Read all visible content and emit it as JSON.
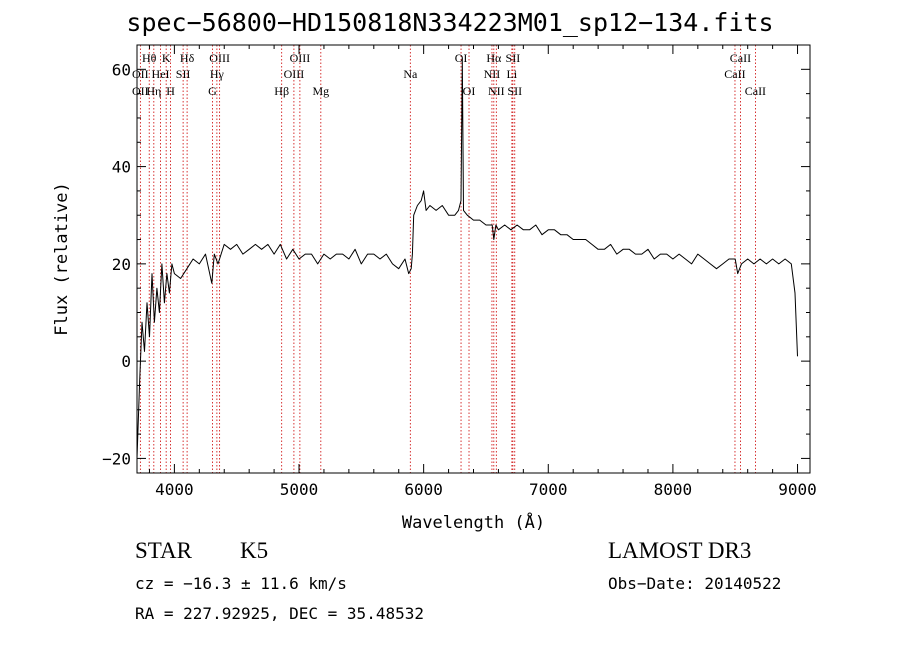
{
  "chart_data": {
    "type": "line",
    "title": "spec−56800−HD150818N334223M01_sp12−134.fits",
    "xlabel": "Wavelength (Å)",
    "ylabel": "Flux (relative)",
    "xlim": [
      3700,
      9100
    ],
    "ylim": [
      -23,
      65
    ],
    "xticks": [
      4000,
      5000,
      6000,
      7000,
      8000,
      9000
    ],
    "yticks": [
      -20,
      0,
      20,
      40,
      60
    ],
    "xtick_labels": [
      "4000",
      "5000",
      "6000",
      "7000",
      "8000",
      "9000"
    ],
    "ytick_labels": [
      "−20",
      "0",
      "20",
      "40",
      "60"
    ],
    "grid": false,
    "legend": "none",
    "series_color": "#000000",
    "line_color": "#cc0000",
    "series": [
      {
        "x": [
          3700,
          3720,
          3740,
          3760,
          3780,
          3800,
          3820,
          3840,
          3860,
          3880,
          3900,
          3920,
          3940,
          3960,
          3980,
          4000,
          4050,
          4100,
          4150,
          4200,
          4250,
          4300,
          4320,
          4350,
          4400,
          4450,
          4500,
          4550,
          4600,
          4650,
          4700,
          4750,
          4800,
          4850,
          4900,
          4950,
          5000,
          5050,
          5100,
          5150,
          5200,
          5250,
          5300,
          5350,
          5400,
          5450,
          5500,
          5550,
          5600,
          5650,
          5700,
          5750,
          5800,
          5850,
          5880,
          5900,
          5910,
          5920,
          5950,
          5980,
          6000,
          6020,
          6050,
          6100,
          6150,
          6200,
          6250,
          6280,
          6300,
          6310,
          6320,
          6350,
          6400,
          6450,
          6500,
          6550,
          6563,
          6580,
          6600,
          6650,
          6700,
          6750,
          6800,
          6850,
          6900,
          6950,
          7000,
          7050,
          7100,
          7150,
          7200,
          7250,
          7300,
          7350,
          7400,
          7450,
          7500,
          7550,
          7600,
          7650,
          7700,
          7750,
          7800,
          7850,
          7900,
          7950,
          8000,
          8050,
          8100,
          8150,
          8200,
          8250,
          8300,
          8350,
          8400,
          8450,
          8500,
          8520,
          8550,
          8600,
          8650,
          8700,
          8750,
          8800,
          8850,
          8900,
          8950,
          8980,
          9000
        ],
        "y": [
          -20,
          -5,
          8,
          2,
          12,
          5,
          18,
          8,
          15,
          10,
          20,
          12,
          18,
          14,
          20,
          18,
          17,
          19,
          21,
          20,
          22,
          16,
          22,
          20,
          24,
          23,
          24,
          22,
          23,
          24,
          23,
          24,
          22,
          24,
          21,
          23,
          21,
          22,
          22,
          20,
          22,
          21,
          22,
          22,
          21,
          23,
          20,
          22,
          22,
          21,
          22,
          20,
          19,
          21,
          18,
          19,
          22,
          30,
          32,
          33,
          35,
          31,
          32,
          31,
          32,
          30,
          30,
          31,
          33,
          62,
          31,
          30,
          29,
          29,
          28,
          28,
          25,
          28,
          27,
          28,
          27,
          28,
          27,
          27,
          28,
          26,
          27,
          27,
          26,
          26,
          25,
          25,
          25,
          24,
          23,
          23,
          24,
          22,
          23,
          23,
          22,
          22,
          23,
          21,
          22,
          22,
          21,
          22,
          21,
          20,
          22,
          21,
          20,
          19,
          20,
          21,
          21,
          18,
          20,
          21,
          20,
          21,
          20,
          21,
          20,
          21,
          20,
          14,
          1
        ]
      }
    ],
    "line_labels": [
      {
        "text": "Hθ",
        "x": 3798,
        "row": 0
      },
      {
        "text": "OII",
        "x": 3727,
        "row": 1
      },
      {
        "text": "OII",
        "x": 3727,
        "row": 2
      },
      {
        "text": "Hη",
        "x": 3835,
        "row": 2
      },
      {
        "text": "K",
        "x": 3934,
        "row": 0
      },
      {
        "text": "HeI",
        "x": 3889,
        "row": 1
      },
      {
        "text": "H",
        "x": 3969,
        "row": 2
      },
      {
        "text": "Hδ",
        "x": 4102,
        "row": 0
      },
      {
        "text": "SII",
        "x": 4070,
        "row": 1
      },
      {
        "text": "OIII",
        "x": 4363,
        "row": 0
      },
      {
        "text": "Hγ",
        "x": 4341,
        "row": 1
      },
      {
        "text": "G",
        "x": 4305,
        "row": 2
      },
      {
        "text": "Hβ",
        "x": 4861,
        "row": 2
      },
      {
        "text": "OIII",
        "x": 5007,
        "row": 0
      },
      {
        "text": "OIII",
        "x": 4959,
        "row": 1
      },
      {
        "text": "Mg",
        "x": 5175,
        "row": 2
      },
      {
        "text": "Na",
        "x": 5893,
        "row": 1
      },
      {
        "text": "OI",
        "x": 6300,
        "row": 0
      },
      {
        "text": "OI",
        "x": 6364,
        "row": 2
      },
      {
        "text": "Hα",
        "x": 6563,
        "row": 0
      },
      {
        "text": "NII",
        "x": 6548,
        "row": 1
      },
      {
        "text": "NII",
        "x": 6583,
        "row": 2
      },
      {
        "text": "SII",
        "x": 6716,
        "row": 0
      },
      {
        "text": "Li",
        "x": 6708,
        "row": 1
      },
      {
        "text": "SII",
        "x": 6731,
        "row": 2
      },
      {
        "text": "CaII",
        "x": 8542,
        "row": 0
      },
      {
        "text": "CaII",
        "x": 8498,
        "row": 1
      },
      {
        "text": "CaII",
        "x": 8662,
        "row": 2
      }
    ]
  },
  "info": {
    "object_type": "STAR",
    "subclass": "K5",
    "survey": "LAMOST DR3",
    "cz": "cz = −16.3 ± 11.6 km/s",
    "obs_date": "Obs−Date: 20140522",
    "radec": "RA = 227.92925, DEC =  35.48532"
  }
}
